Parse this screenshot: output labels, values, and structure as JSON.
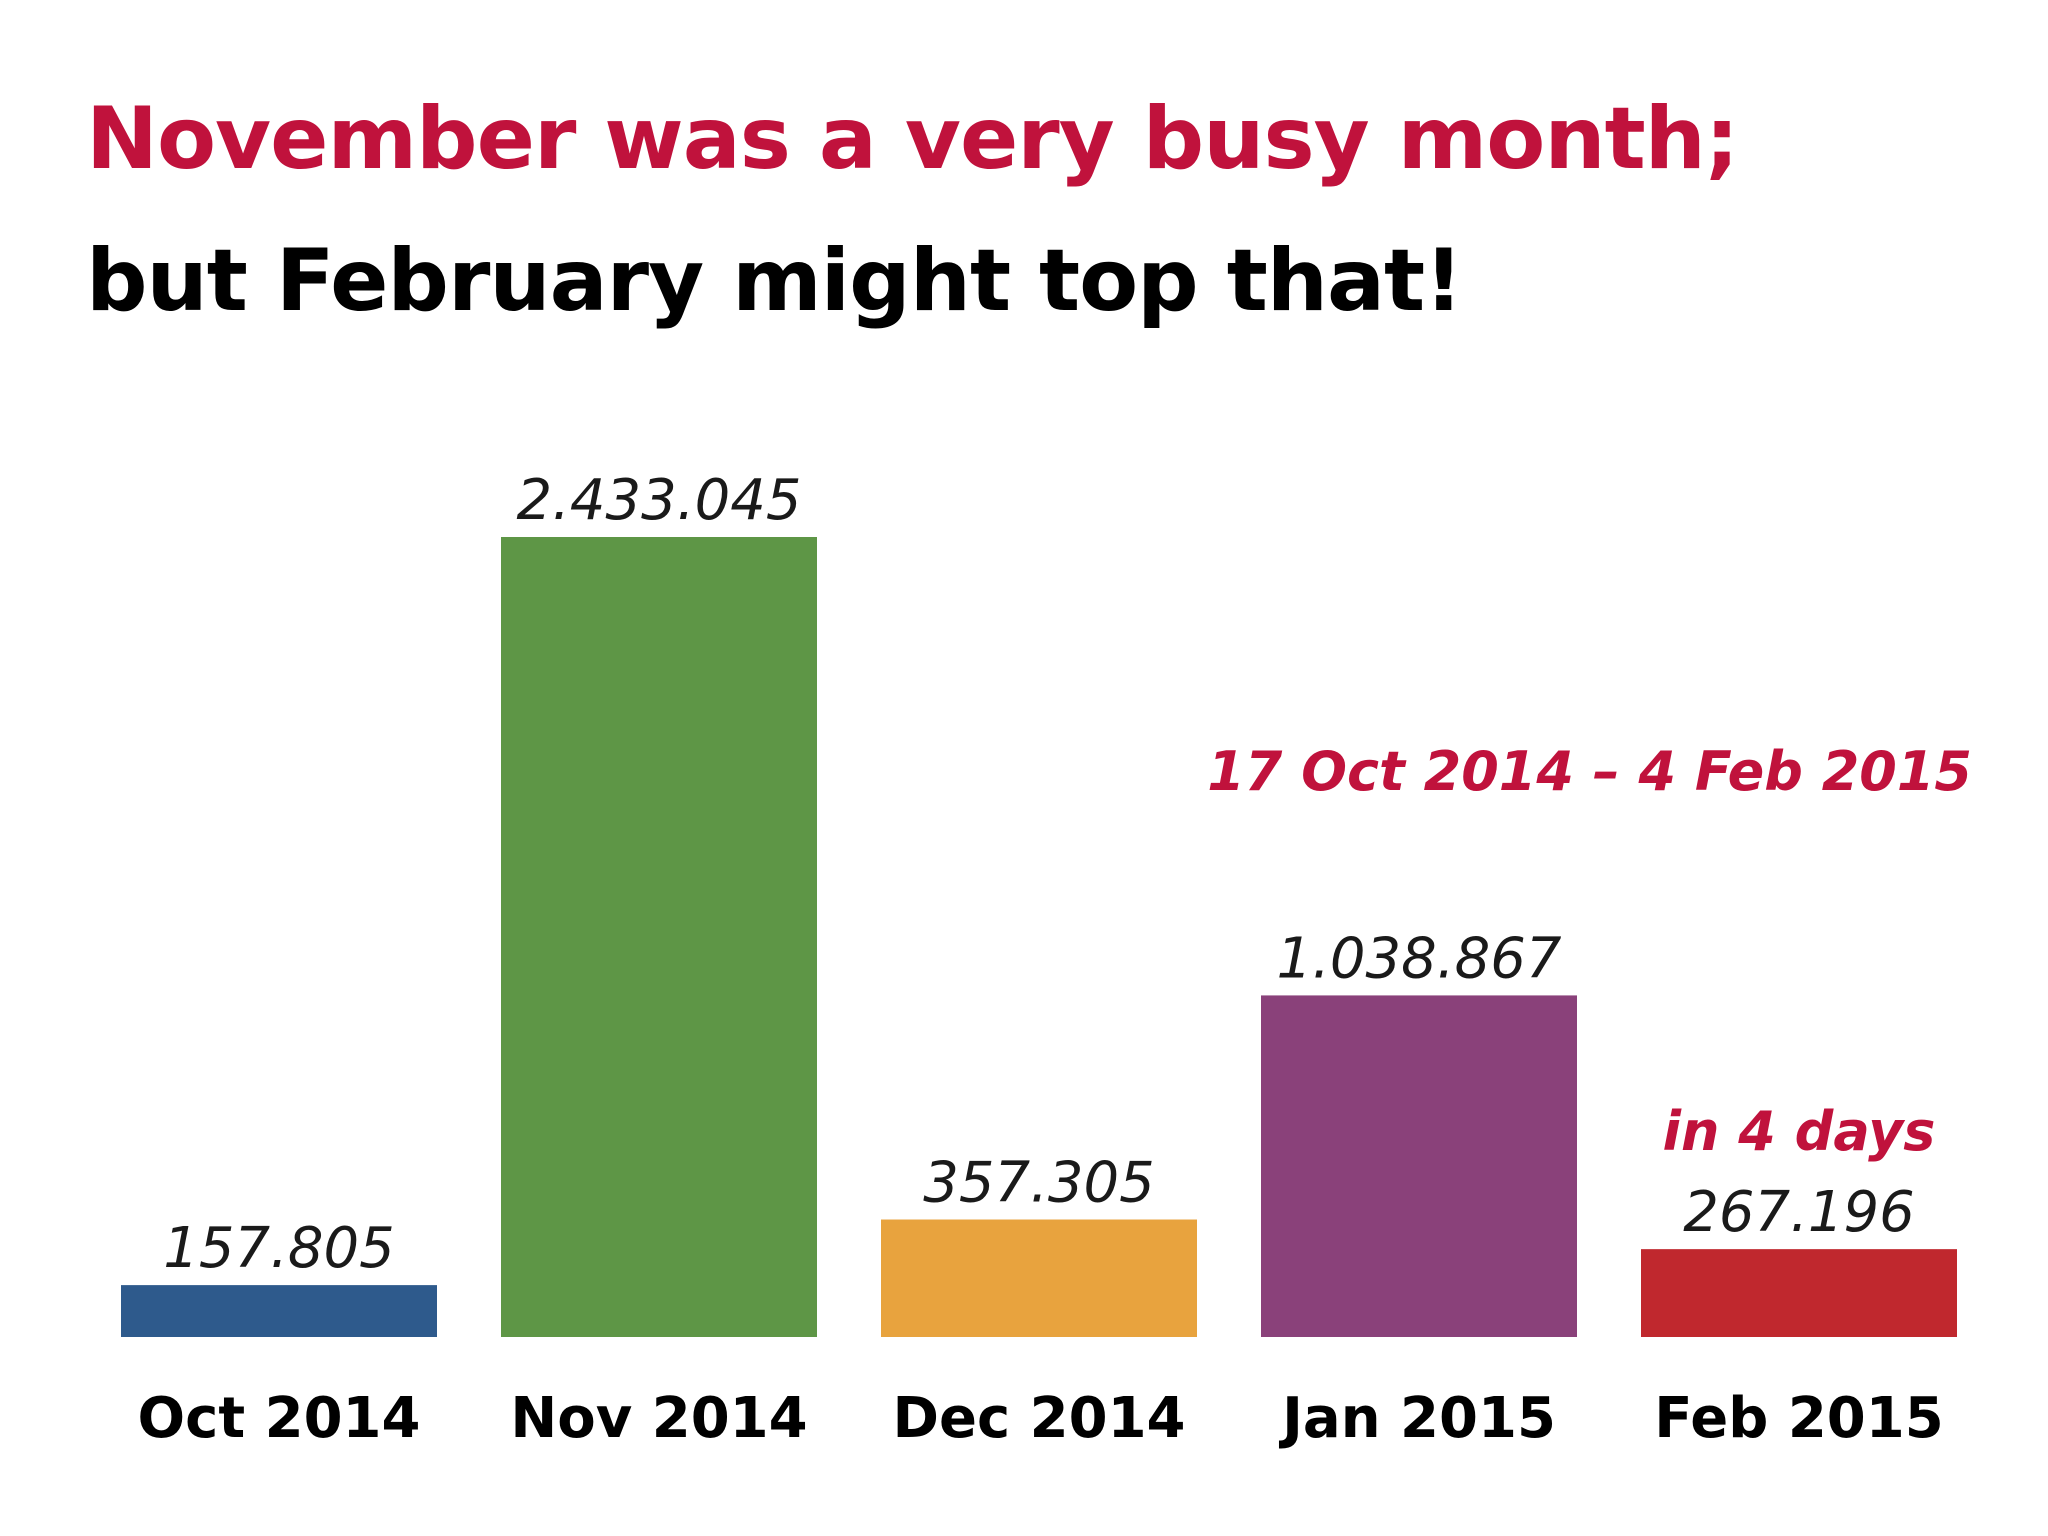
{
  "colors": {
    "accent": "#c0123c",
    "text": "#000000"
  },
  "chart_data": {
    "type": "bar",
    "title": "November was a very busy month;",
    "subtitle": "but February might top that!",
    "categories": [
      "Oct 2014",
      "Nov 2014",
      "Dec 2014",
      "Jan 2015",
      "Feb 2015"
    ],
    "values": [
      157805,
      2433045,
      357305,
      1038867,
      267196
    ],
    "value_labels": [
      "157.805",
      "2.433.045",
      "357.305",
      "1.038.867",
      "267.196"
    ],
    "bar_colors": [
      "#2e5a8c",
      "#5e9646",
      "#e8a33e",
      "#8a417a",
      "#c0282e"
    ],
    "ylim": [
      0,
      2433045
    ],
    "grid": false,
    "annotations": {
      "date_range": "17 Oct 2014 – 4 Feb 2015",
      "feb_note": "in 4 days"
    }
  }
}
